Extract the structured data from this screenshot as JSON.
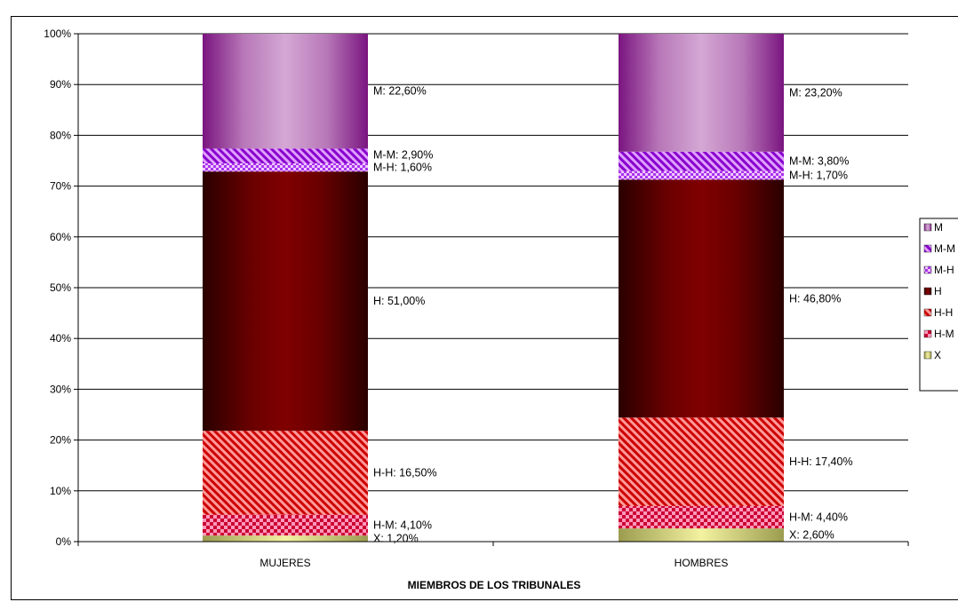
{
  "chart_data": {
    "type": "bar",
    "stacked": "percent",
    "categories": [
      "MUJERES",
      "HOMBRES"
    ],
    "xlabel": "MIEMBROS DE LOS TRIBUNALES",
    "ylabel": "",
    "ylim": [
      0,
      100
    ],
    "yticks": [
      "0%",
      "10%",
      "20%",
      "30%",
      "40%",
      "50%",
      "60%",
      "70%",
      "80%",
      "90%",
      "100%"
    ],
    "grid": true,
    "legend": "right",
    "series": [
      {
        "name": "X",
        "values": [
          1.2,
          2.6
        ],
        "labels": [
          "X: 1,20%",
          "X: 2,60%"
        ],
        "color": "#e6e68a",
        "pattern": "gradient-yellow"
      },
      {
        "name": "H-M",
        "values": [
          4.1,
          4.4
        ],
        "labels": [
          "H-M: 4,10%",
          "H-M: 4,40%"
        ],
        "color": "#ff3366",
        "pattern": "checker"
      },
      {
        "name": "H-H",
        "values": [
          16.5,
          17.4
        ],
        "labels": [
          "H-H: 16,50%",
          "H-H: 17,40%"
        ],
        "color": "#ff3333",
        "pattern": "diagonal"
      },
      {
        "name": "H",
        "values": [
          51.0,
          46.8
        ],
        "labels": [
          "H: 51,00%",
          "H: 46,80%"
        ],
        "color": "#800000",
        "pattern": "gradient-maroon"
      },
      {
        "name": "M-H",
        "values": [
          1.6,
          1.7
        ],
        "labels": [
          "M-H: 1,60%",
          "M-H: 1,70%"
        ],
        "color": "#cc33ff",
        "pattern": "checker"
      },
      {
        "name": "M-M",
        "values": [
          2.9,
          3.8
        ],
        "labels": [
          "M-M: 2,90%",
          "M-M: 3,80%"
        ],
        "color": "#9900cc",
        "pattern": "diagonal"
      },
      {
        "name": "M",
        "values": [
          22.6,
          23.2
        ],
        "labels": [
          "M: 22,60%",
          "M: 23,20%"
        ],
        "color": "#cc99cc",
        "pattern": "gradient-purple"
      }
    ],
    "legend_order": [
      "M",
      "M-M",
      "M-H",
      "H",
      "H-H",
      "H-M",
      "X"
    ],
    "legend_labels": [
      "M",
      "M-M",
      "M-H",
      "H",
      "H-H",
      "H-M",
      "X"
    ]
  }
}
